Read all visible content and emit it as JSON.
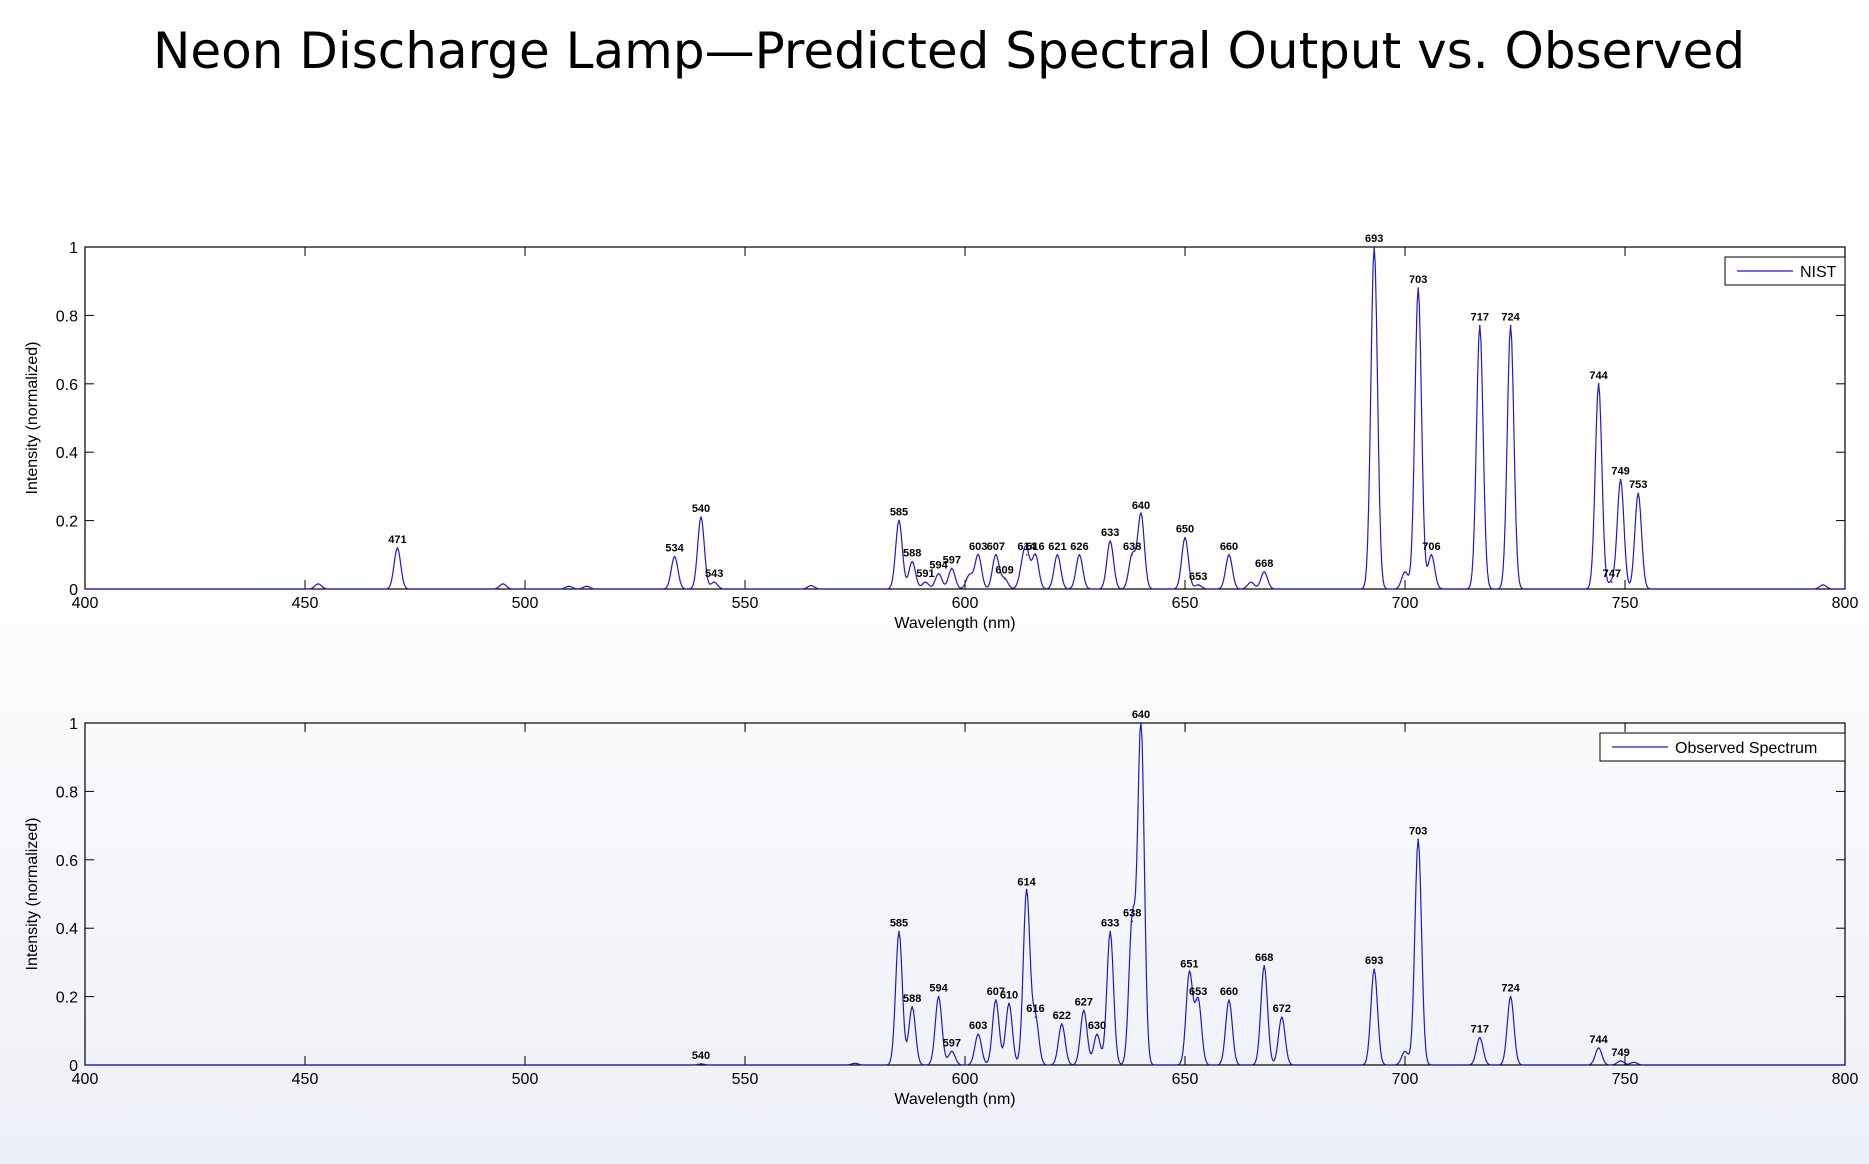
{
  "title": "Neon Discharge Lamp—Predicted Spectral Output vs. Observed",
  "chart_data": [
    {
      "type": "line",
      "series_name": "NIST",
      "xlabel": "Wavelength (nm)",
      "ylabel": "Intensity (normalized)",
      "xlim": [
        400,
        800
      ],
      "ylim": [
        0,
        1
      ],
      "xticks": [
        400,
        450,
        500,
        550,
        600,
        650,
        700,
        750,
        800
      ],
      "yticks": [
        0,
        0.2,
        0.4,
        0.6,
        0.8,
        1
      ],
      "ytick_labels": [
        "0",
        "0.2",
        "0.4",
        "0.6",
        "0.8",
        "1"
      ],
      "legend_position": "top-right",
      "minor_peaks": [
        [
          453,
          0.015
        ],
        [
          495,
          0.015
        ],
        [
          510,
          0.008
        ],
        [
          514,
          0.008
        ],
        [
          565,
          0.01
        ],
        [
          601,
          0.04
        ],
        [
          613,
          0.05
        ],
        [
          665,
          0.02
        ],
        [
          700,
          0.05
        ],
        [
          795,
          0.012
        ]
      ],
      "peaks": [
        {
          "x": 471,
          "y": 0.12,
          "label": "471"
        },
        {
          "x": 534,
          "y": 0.095,
          "label": "534"
        },
        {
          "x": 540,
          "y": 0.21,
          "label": "540"
        },
        {
          "x": 543,
          "y": 0.02,
          "label": "543"
        },
        {
          "x": 585,
          "y": 0.2,
          "label": "585"
        },
        {
          "x": 588,
          "y": 0.08,
          "label": "588"
        },
        {
          "x": 591,
          "y": 0.02,
          "label": "591"
        },
        {
          "x": 594,
          "y": 0.045,
          "label": "594"
        },
        {
          "x": 597,
          "y": 0.06,
          "label": "597"
        },
        {
          "x": 603,
          "y": 0.1,
          "label": "603"
        },
        {
          "x": 607,
          "y": 0.1,
          "label": "607"
        },
        {
          "x": 609,
          "y": 0.03,
          "label": "609"
        },
        {
          "x": 614,
          "y": 0.1,
          "label": "614"
        },
        {
          "x": 616,
          "y": 0.1,
          "label": "616"
        },
        {
          "x": 621,
          "y": 0.1,
          "label": "621"
        },
        {
          "x": 626,
          "y": 0.1,
          "label": "626"
        },
        {
          "x": 633,
          "y": 0.14,
          "label": "633"
        },
        {
          "x": 638,
          "y": 0.1,
          "label": "638"
        },
        {
          "x": 640,
          "y": 0.22,
          "label": "640"
        },
        {
          "x": 650,
          "y": 0.15,
          "label": "650"
        },
        {
          "x": 653,
          "y": 0.012,
          "label": "653"
        },
        {
          "x": 660,
          "y": 0.1,
          "label": "660"
        },
        {
          "x": 668,
          "y": 0.05,
          "label": "668"
        },
        {
          "x": 693,
          "y": 1.0,
          "label": "693"
        },
        {
          "x": 703,
          "y": 0.88,
          "label": "703"
        },
        {
          "x": 706,
          "y": 0.1,
          "label": "706"
        },
        {
          "x": 717,
          "y": 0.77,
          "label": "717"
        },
        {
          "x": 724,
          "y": 0.77,
          "label": "724"
        },
        {
          "x": 744,
          "y": 0.6,
          "label": "744"
        },
        {
          "x": 747,
          "y": 0.02,
          "label": "747"
        },
        {
          "x": 749,
          "y": 0.32,
          "label": "749"
        },
        {
          "x": 753,
          "y": 0.28,
          "label": "753"
        }
      ]
    },
    {
      "type": "line",
      "series_name": "Observed Spectrum",
      "xlabel": "Wavelength (nm)",
      "ylabel": "Intensity (normalized)",
      "xlim": [
        400,
        800
      ],
      "ylim": [
        0,
        1
      ],
      "xticks": [
        400,
        450,
        500,
        550,
        600,
        650,
        700,
        750,
        800
      ],
      "yticks": [
        0,
        0.2,
        0.4,
        0.6,
        0.8,
        1
      ],
      "ytick_labels": [
        "0",
        "0.2",
        "0.4",
        "0.6",
        "0.8",
        "1"
      ],
      "legend_position": "top-right",
      "minor_peaks": [
        [
          575,
          0.005
        ],
        [
          700,
          0.04
        ],
        [
          752,
          0.008
        ]
      ],
      "peaks": [
        {
          "x": 540,
          "y": 0.003,
          "label": "540"
        },
        {
          "x": 585,
          "y": 0.39,
          "label": "585"
        },
        {
          "x": 588,
          "y": 0.17,
          "label": "588"
        },
        {
          "x": 594,
          "y": 0.2,
          "label": "594"
        },
        {
          "x": 597,
          "y": 0.04,
          "label": "597"
        },
        {
          "x": 603,
          "y": 0.09,
          "label": "603"
        },
        {
          "x": 607,
          "y": 0.19,
          "label": "607"
        },
        {
          "x": 610,
          "y": 0.18,
          "label": "610"
        },
        {
          "x": 614,
          "y": 0.51,
          "label": "614"
        },
        {
          "x": 616,
          "y": 0.14,
          "label": "616"
        },
        {
          "x": 622,
          "y": 0.12,
          "label": "622"
        },
        {
          "x": 627,
          "y": 0.16,
          "label": "627"
        },
        {
          "x": 630,
          "y": 0.09,
          "label": "630"
        },
        {
          "x": 633,
          "y": 0.39,
          "label": "633"
        },
        {
          "x": 638,
          "y": 0.42,
          "label": "638"
        },
        {
          "x": 640,
          "y": 1.0,
          "label": "640"
        },
        {
          "x": 651,
          "y": 0.27,
          "label": "651"
        },
        {
          "x": 653,
          "y": 0.19,
          "label": "653"
        },
        {
          "x": 660,
          "y": 0.19,
          "label": "660"
        },
        {
          "x": 668,
          "y": 0.29,
          "label": "668"
        },
        {
          "x": 672,
          "y": 0.14,
          "label": "672"
        },
        {
          "x": 693,
          "y": 0.28,
          "label": "693"
        },
        {
          "x": 703,
          "y": 0.66,
          "label": "703"
        },
        {
          "x": 717,
          "y": 0.08,
          "label": "717"
        },
        {
          "x": 724,
          "y": 0.2,
          "label": "724"
        },
        {
          "x": 744,
          "y": 0.05,
          "label": "744"
        },
        {
          "x": 749,
          "y": 0.012,
          "label": "749"
        }
      ]
    }
  ]
}
